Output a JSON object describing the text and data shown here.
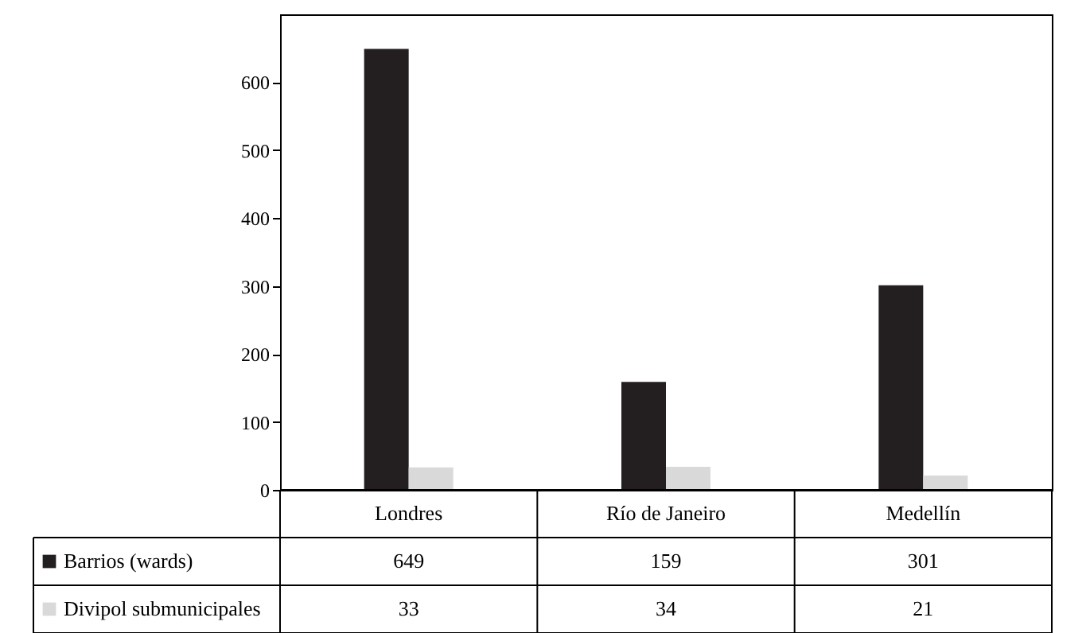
{
  "chart_data": {
    "type": "bar",
    "categories": [
      "Londres",
      "Río de Janeiro",
      "Medellín"
    ],
    "series": [
      {
        "name": "Barrios (wards)",
        "color": "#231f20",
        "values": [
          649,
          159,
          301
        ]
      },
      {
        "name": "Divipol submunicipales",
        "color": "#d9d9d9",
        "values": [
          33,
          34,
          21
        ]
      }
    ],
    "ylim": [
      0,
      700
    ],
    "yticks": [
      0,
      100,
      200,
      300,
      400,
      500,
      600
    ],
    "grid": false,
    "data_labels": true,
    "legend": "bottom"
  }
}
